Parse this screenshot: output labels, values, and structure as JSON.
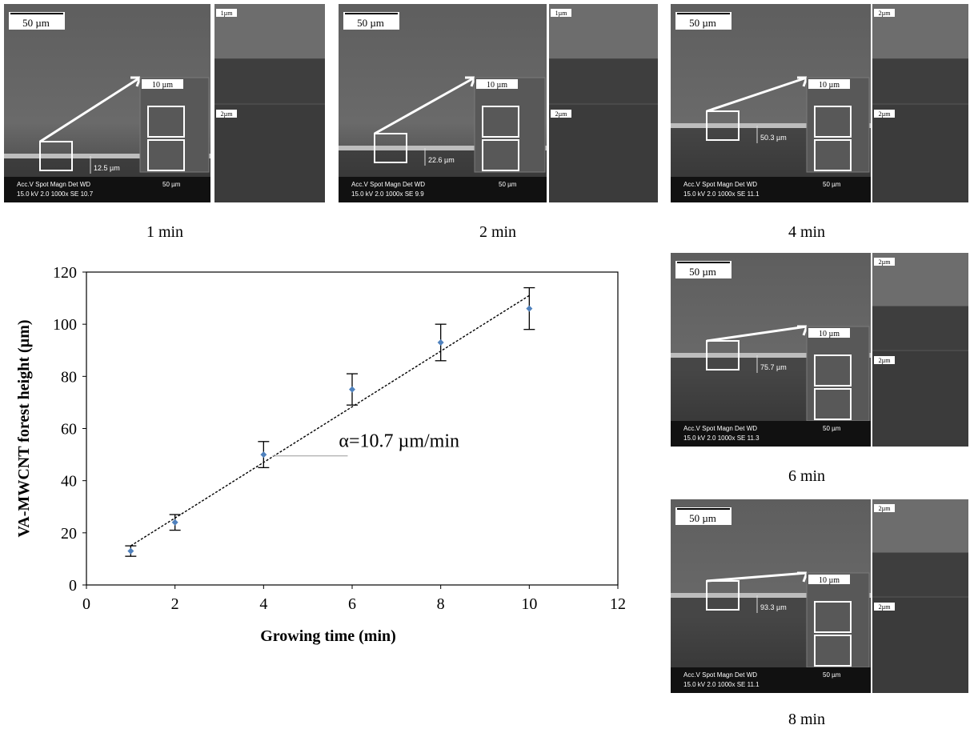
{
  "panels": [
    {
      "caption": "1 min",
      "scale_main": "50 µm",
      "scale_mid": "10 µm",
      "scale_top": "1µm",
      "scale_bot": "2µm",
      "height_label": "12.5 µm",
      "info": "Acc.V  Spot Magn   Det  WD",
      "info2": "15.0 kV 2.0   1000x   SE   10.7",
      "bar_label": "50 µm"
    },
    {
      "caption": "2 min",
      "scale_main": "50 µm",
      "scale_mid": "10 µm",
      "scale_top": "1µm",
      "scale_bot": "2µm",
      "height_label": "22.6 µm",
      "info": "Acc.V  Spot Magn   Det  WD",
      "info2": "15.0 kV 2.0   1000x   SE   9.9",
      "bar_label": "50 µm"
    },
    {
      "caption": "4 min",
      "scale_main": "50 µm",
      "scale_mid": "10 µm",
      "scale_top": "2µm",
      "scale_bot": "2µm",
      "height_label": "50.3 µm",
      "info": "Acc.V  Spot Magn   Det  WD",
      "info2": "15.0 kV 2.0   1000x   SE   11.1",
      "bar_label": "50 µm"
    },
    {
      "caption": "6 min",
      "scale_main": "50 µm",
      "scale_mid": "10 µm",
      "scale_top": "2µm",
      "scale_bot": "2µm",
      "height_label": "75.7 µm",
      "info": "Acc.V  Spot Magn   Det  WD",
      "info2": "15.0 kV 2.0   1000x   SE   11.3",
      "bar_label": "50 µm"
    },
    {
      "caption": "8 min",
      "scale_main": "50 µm",
      "scale_mid": "10 µm",
      "scale_top": "2µm",
      "scale_bot": "2µm",
      "height_label": "93.3 µm",
      "info": "Acc.V  Spot Magn   Det  WD",
      "info2": "15.0 kV 2.0   1000x   SE   11.1",
      "bar_label": "50 µm"
    }
  ],
  "chart_data": {
    "type": "scatter",
    "xlabel": "Growing time (min)",
    "ylabel": "VA-MWCNT forest height (µm)",
    "xlim": [
      0,
      12
    ],
    "ylim": [
      0,
      120
    ],
    "xticks": [
      0,
      2,
      4,
      6,
      8,
      10,
      12
    ],
    "yticks": [
      0,
      20,
      40,
      60,
      80,
      100,
      120
    ],
    "x": [
      1,
      2,
      4,
      6,
      8,
      10
    ],
    "y": [
      13,
      24,
      50,
      75,
      93,
      106
    ],
    "error_low": [
      11,
      21,
      45,
      69,
      86,
      98
    ],
    "error_high": [
      15,
      27,
      55,
      81,
      100,
      114
    ],
    "trendline": {
      "x": [
        1,
        10
      ],
      "y": [
        15,
        111
      ]
    },
    "annotation": "α=10.7 µm/min",
    "point_color": "#4f81bd",
    "grid": false
  }
}
